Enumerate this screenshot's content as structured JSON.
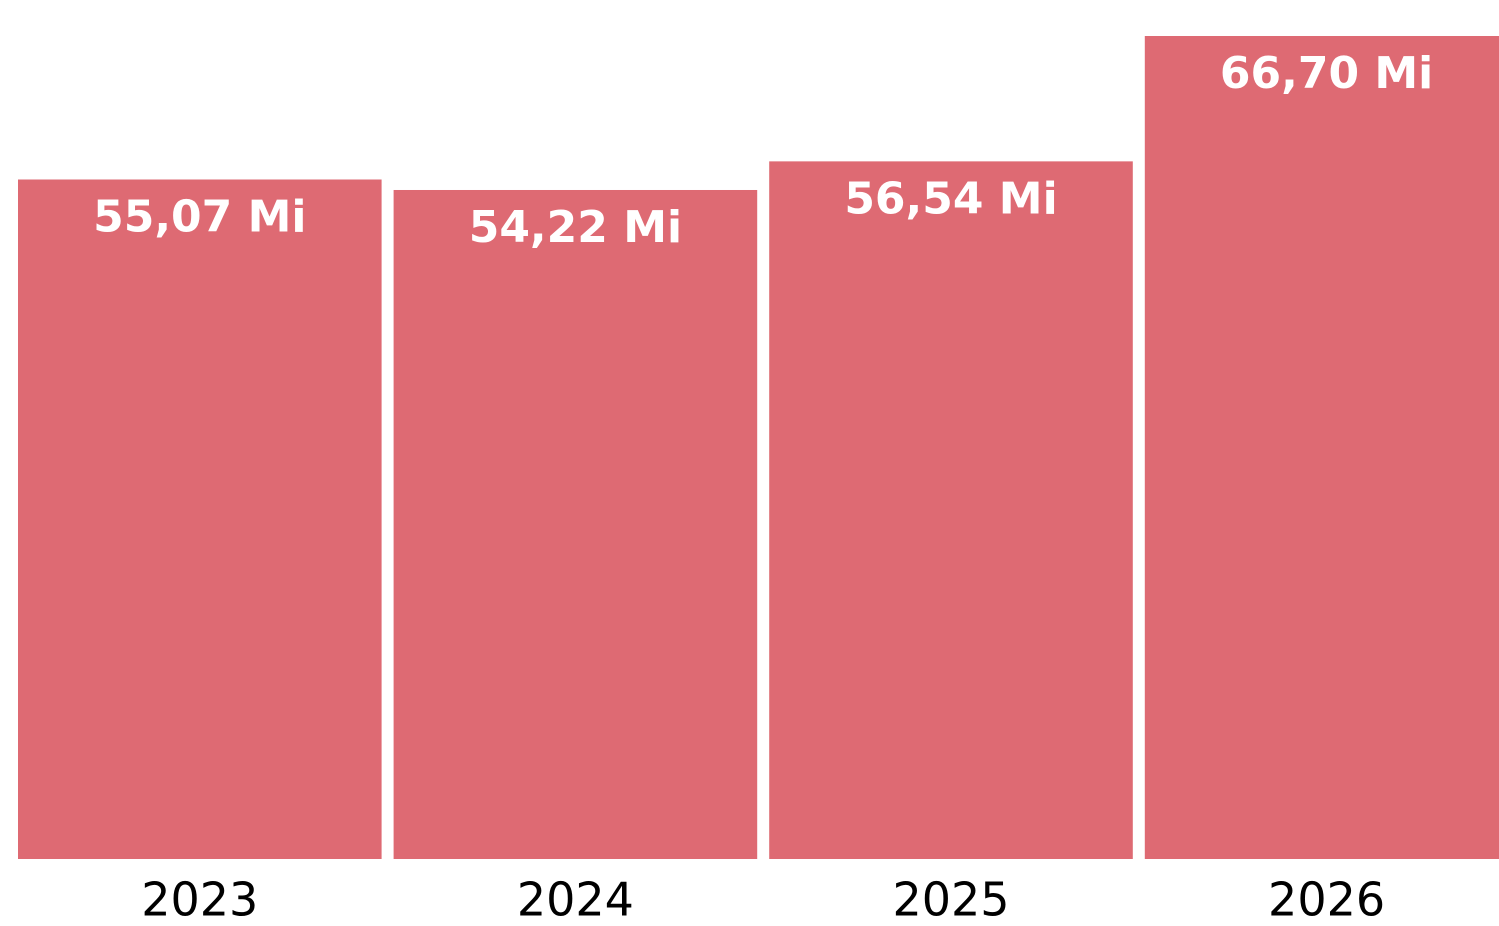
{
  "chart_data": {
    "type": "bar",
    "categories": [
      "2023",
      "2024",
      "2025",
      "2026"
    ],
    "values": [
      55.07,
      54.22,
      56.54,
      66.7
    ],
    "value_labels": [
      "55,07 Mi",
      "54,22 Mi",
      "56,54 Mi",
      "66,70 Mi"
    ],
    "color": "#de6a73"
  }
}
